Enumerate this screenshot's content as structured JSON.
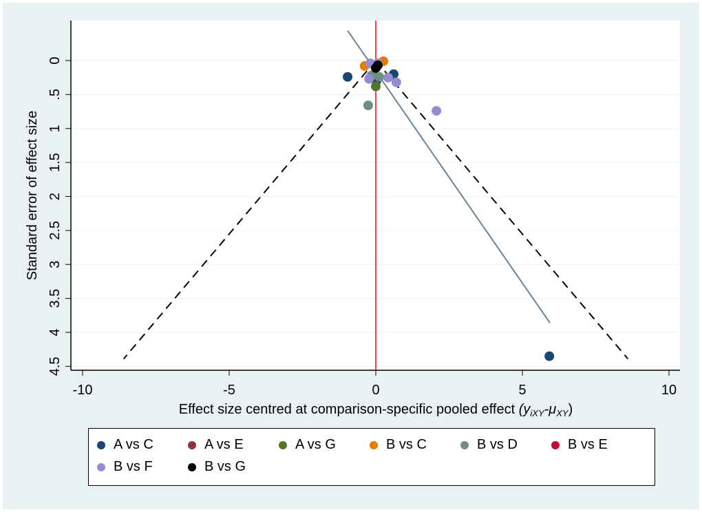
{
  "chart_data": {
    "type": "scatter",
    "title": "",
    "xlabel": "Effect size centred at comparison-specific pooled effect",
    "xlabel_math": "(y",
    "xlabel_sub1": "iXY",
    "xlabel_mid": "-μ",
    "xlabel_sub2": "XY",
    "xlabel_end": ")",
    "ylabel": "Standard error of effect size",
    "xlim": [
      -10,
      10
    ],
    "ylim": [
      4.5,
      0
    ],
    "y_reversed": true,
    "xticks": [
      -10,
      -5,
      0,
      5,
      10
    ],
    "xtick_labels": [
      "-10",
      "-5",
      "0",
      "5",
      "10"
    ],
    "yticks": [
      0,
      0.5,
      1,
      1.5,
      2,
      2.5,
      3,
      3.5,
      4,
      4.5
    ],
    "ytick_labels": [
      "0",
      ".5",
      "1",
      "1.5",
      "2",
      "2.5",
      "3",
      "3.5",
      "4",
      "4.5"
    ],
    "grid": true,
    "legend_position": "bottom",
    "reference_line_x": 0,
    "funnel": {
      "apex": [
        0,
        0
      ],
      "bottom_se": 4.39,
      "half_width": 8.6
    },
    "regression_line": [
      [
        -0.96,
        -0.44
      ],
      [
        5.94,
        3.86
      ]
    ],
    "series": [
      {
        "name": "A vs C",
        "color": "#1a476f",
        "points": [
          [
            -0.96,
            0.24
          ],
          [
            0.61,
            0.2
          ],
          [
            0.02,
            0.3
          ],
          [
            5.92,
            4.35
          ]
        ]
      },
      {
        "name": "A vs E",
        "color": "#90353b",
        "points": []
      },
      {
        "name": "A vs G",
        "color": "#55752f",
        "points": [
          [
            0,
            0.38
          ]
        ]
      },
      {
        "name": "B vs C",
        "color": "#e37e00",
        "points": [
          [
            -0.38,
            0.08
          ],
          [
            0.26,
            0.01
          ]
        ]
      },
      {
        "name": "B vs D",
        "color": "#6e8e84",
        "points": [
          [
            -0.26,
            0.66
          ],
          [
            0.12,
            0.24
          ],
          [
            -0.15,
            0.22
          ]
        ]
      },
      {
        "name": "B vs E",
        "color": "#c10534",
        "points": []
      },
      {
        "name": "B vs F",
        "color": "#938dd2",
        "points": [
          [
            -0.19,
            0.04
          ],
          [
            0.07,
            0.04
          ],
          [
            -0.23,
            0.27
          ],
          [
            0.42,
            0.25
          ],
          [
            0.7,
            0.32
          ],
          [
            2.07,
            0.74
          ]
        ]
      },
      {
        "name": "B vs G",
        "color": "#000000",
        "points": [
          [
            0,
            0.11
          ],
          [
            0.07,
            0.07
          ]
        ]
      }
    ]
  }
}
